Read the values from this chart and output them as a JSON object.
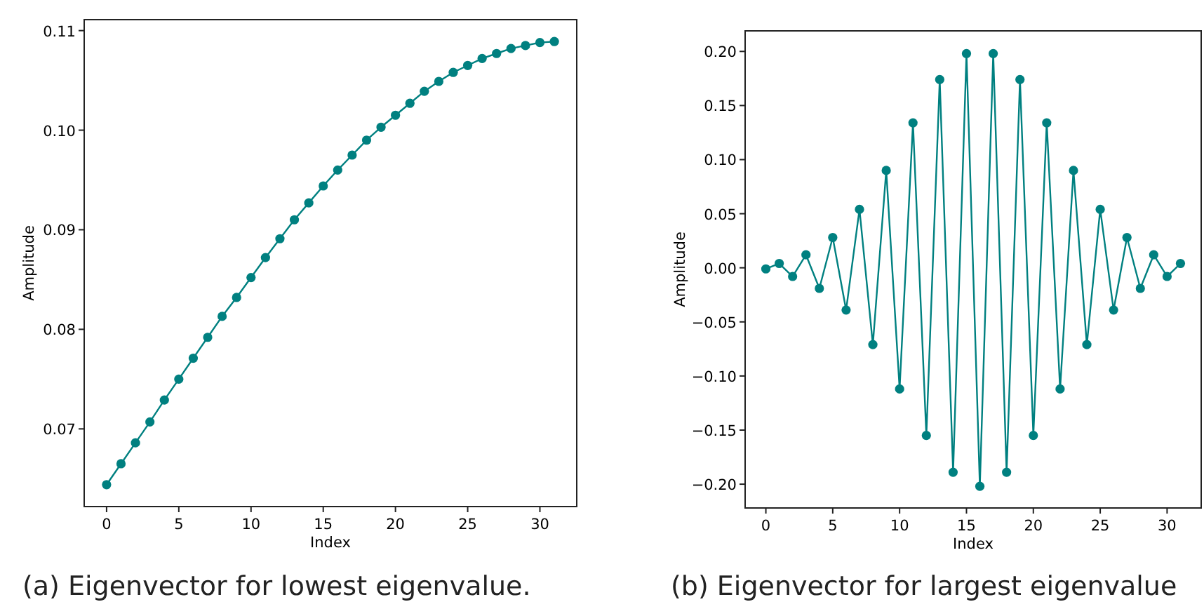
{
  "chart_data": [
    {
      "type": "line",
      "title": "(a) Eigenvector for lowest eigenvalue.",
      "xlabel": "Index",
      "ylabel": "Amplitude",
      "marker": "circle",
      "x": [
        0,
        1,
        2,
        3,
        4,
        5,
        6,
        7,
        8,
        9,
        10,
        11,
        12,
        13,
        14,
        15,
        16,
        17,
        18,
        19,
        20,
        21,
        22,
        23,
        24,
        25,
        26,
        27,
        28,
        29,
        30,
        31
      ],
      "series": [
        {
          "color": "#008080",
          "values": [
            0.0644,
            0.0665,
            0.0686,
            0.0707,
            0.0729,
            0.075,
            0.0771,
            0.0792,
            0.0813,
            0.0832,
            0.0852,
            0.0872,
            0.0891,
            0.091,
            0.0927,
            0.0944,
            0.096,
            0.0975,
            0.099,
            0.1003,
            0.1015,
            0.1027,
            0.1039,
            0.1049,
            0.1058,
            0.1065,
            0.1072,
            0.1077,
            0.1082,
            0.1085,
            0.1088,
            0.1089
          ]
        }
      ],
      "xlim": [
        -1.55,
        32.55
      ],
      "xticks": [
        0,
        5,
        10,
        15,
        20,
        25,
        30
      ],
      "ylim": [
        0.0622,
        0.1111
      ],
      "yticks": [
        {
          "value": 0.07,
          "label": "0.07"
        },
        {
          "value": 0.08,
          "label": "0.08"
        },
        {
          "value": 0.09,
          "label": "0.09"
        },
        {
          "value": 0.1,
          "label": "0.10"
        },
        {
          "value": 0.11,
          "label": "0.11"
        }
      ]
    },
    {
      "type": "line",
      "title": "(b) Eigenvector for largest eigenvalue",
      "xlabel": "Index",
      "ylabel": "Amplitude",
      "marker": "circle",
      "x": [
        0,
        1,
        2,
        3,
        4,
        5,
        6,
        7,
        8,
        9,
        10,
        11,
        12,
        13,
        14,
        15,
        16,
        17,
        18,
        19,
        20,
        21,
        22,
        23,
        24,
        25,
        26,
        27,
        28,
        29,
        30,
        31
      ],
      "series": [
        {
          "color": "#008080",
          "values": [
            -0.001,
            0.004,
            -0.008,
            0.012,
            -0.019,
            0.028,
            -0.039,
            0.054,
            -0.071,
            0.09,
            -0.112,
            0.134,
            -0.155,
            0.174,
            -0.189,
            0.198,
            -0.202,
            0.198,
            -0.189,
            0.174,
            -0.155,
            0.134,
            -0.112,
            0.09,
            -0.071,
            0.054,
            -0.039,
            0.028,
            -0.019,
            0.012,
            -0.008,
            0.004
          ]
        }
      ],
      "xlim": [
        -1.55,
        32.55
      ],
      "xticks": [
        0,
        5,
        10,
        15,
        20,
        25,
        30
      ],
      "ylim": [
        -0.222,
        0.219
      ],
      "yticks": [
        {
          "value": -0.2,
          "label": "−0.20"
        },
        {
          "value": -0.15,
          "label": "−0.15"
        },
        {
          "value": -0.1,
          "label": "−0.10"
        },
        {
          "value": -0.05,
          "label": "−0.05"
        },
        {
          "value": 0,
          "label": "0.00"
        },
        {
          "value": 0.05,
          "label": "0.05"
        },
        {
          "value": 0.1,
          "label": "0.10"
        },
        {
          "value": 0.15,
          "label": "0.15"
        },
        {
          "value": 0.2,
          "label": "0.20"
        }
      ]
    }
  ]
}
